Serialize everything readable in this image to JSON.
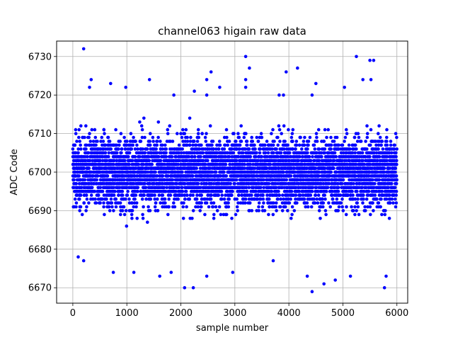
{
  "chart_data": {
    "type": "scatter",
    "title": "channel063 higain raw data",
    "xlabel": "sample number",
    "ylabel": "ADC Code",
    "xlim": [
      -300,
      6200
    ],
    "ylim": [
      6666,
      6734
    ],
    "xticks": [
      0,
      1000,
      2000,
      3000,
      4000,
      5000,
      6000
    ],
    "yticks": [
      6670,
      6680,
      6690,
      6700,
      6710,
      6720,
      6730
    ],
    "grid": true,
    "marker_color": "#0000ff",
    "n_samples": 6000,
    "bulk_band": [
      6685,
      6716
    ],
    "outliers": [
      [
        200,
        6732
      ],
      [
        3200,
        6730
      ],
      [
        5250,
        6730
      ],
      [
        5500,
        6729
      ],
      [
        5570,
        6729
      ],
      [
        3270,
        6727
      ],
      [
        4160,
        6727
      ],
      [
        2560,
        6726
      ],
      [
        3950,
        6726
      ],
      [
        2480,
        6724
      ],
      [
        3200,
        6724
      ],
      [
        5370,
        6724
      ],
      [
        5520,
        6724
      ],
      [
        1420,
        6724
      ],
      [
        340,
        6724
      ],
      [
        700,
        6723
      ],
      [
        4500,
        6723
      ],
      [
        3200,
        6722
      ],
      [
        2250,
        6721
      ],
      [
        2480,
        6720
      ],
      [
        5030,
        6722
      ],
      [
        310,
        6722
      ],
      [
        980,
        6722
      ],
      [
        2720,
        6722
      ],
      [
        3820,
        6720
      ],
      [
        3900,
        6720
      ],
      [
        1870,
        6720
      ],
      [
        4430,
        6720
      ],
      [
        2070,
        6670
      ],
      [
        2230,
        6670
      ],
      [
        4430,
        6669
      ],
      [
        4650,
        6671
      ],
      [
        5770,
        6670
      ],
      [
        3710,
        6677
      ],
      [
        4860,
        6672
      ],
      [
        5140,
        6673
      ],
      [
        1820,
        6674
      ],
      [
        750,
        6674
      ],
      [
        2480,
        6673
      ],
      [
        2960,
        6674
      ],
      [
        1130,
        6674
      ],
      [
        4340,
        6673
      ],
      [
        5800,
        6673
      ],
      [
        100,
        6678
      ],
      [
        1610,
        6673
      ],
      [
        200,
        6677
      ]
    ]
  }
}
